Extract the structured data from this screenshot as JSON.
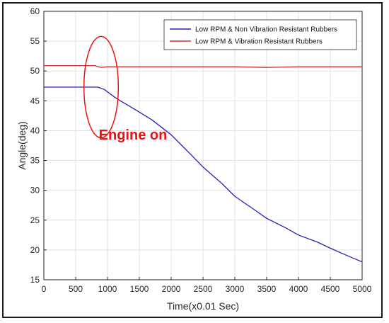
{
  "chart_data": {
    "type": "line",
    "title": "",
    "xlabel": "Time(x0.01 Sec)",
    "ylabel": "Angle(deg)",
    "xlim": [
      0,
      5000
    ],
    "ylim": [
      15,
      60
    ],
    "xticks": [
      0,
      500,
      1000,
      1500,
      2000,
      2500,
      3000,
      3500,
      4000,
      4500,
      5000
    ],
    "yticks": [
      15,
      20,
      25,
      30,
      35,
      40,
      45,
      50,
      55,
      60
    ],
    "grid": true,
    "legend_position": "top-right",
    "series": [
      {
        "name": "Low RPM & Non Vibration Resistant Rubbers",
        "color": "#2222bb",
        "x": [
          0,
          500,
          850,
          950,
          1000,
          1100,
          1200,
          1300,
          1500,
          1700,
          2000,
          2300,
          2500,
          2800,
          3000,
          3300,
          3500,
          3800,
          4000,
          4300,
          4500,
          4800,
          5000
        ],
        "y": [
          47.3,
          47.3,
          47.3,
          46.9,
          46.5,
          45.7,
          45.0,
          44.4,
          43.1,
          41.8,
          39.3,
          36.1,
          33.9,
          31.1,
          29.0,
          26.8,
          25.3,
          23.7,
          22.5,
          21.3,
          20.3,
          18.9,
          18.0
        ]
      },
      {
        "name": "Low RPM & Vibration Resistant Rubbers",
        "color": "#cc3333",
        "x": [
          0,
          500,
          800,
          900,
          1000,
          1500,
          2000,
          2500,
          3000,
          3500,
          4000,
          4500,
          5000
        ],
        "y": [
          50.9,
          50.9,
          50.9,
          50.6,
          50.7,
          50.7,
          50.7,
          50.7,
          50.7,
          50.6,
          50.7,
          50.7,
          50.7
        ]
      }
    ],
    "annotations": [
      {
        "text": "Engine on",
        "color": "#ee1111",
        "x": 1400,
        "y": 38.5,
        "shape": "ellipse",
        "ellipse_center": [
          900,
          47.3
        ],
        "ellipse_radius": [
          270,
          8.5
        ]
      }
    ]
  }
}
